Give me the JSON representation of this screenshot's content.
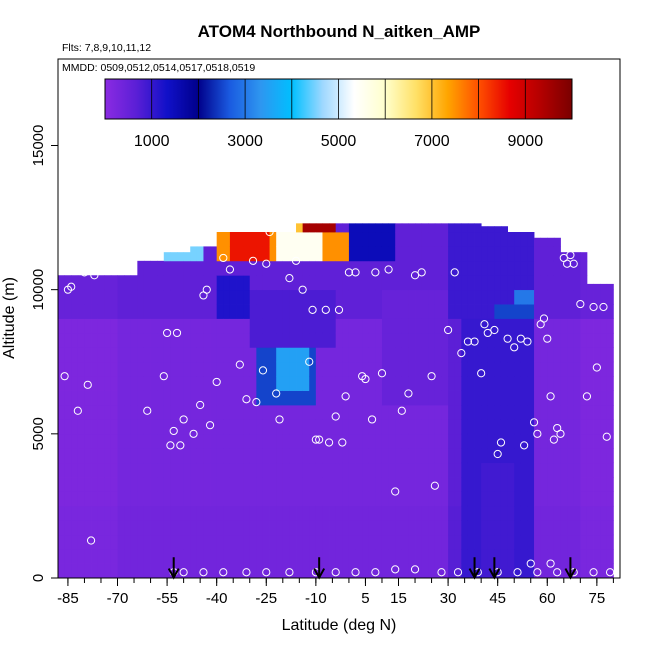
{
  "chart_data": {
    "type": "heatmap",
    "title": "ATOM4 Northbound N_aitken_AMP",
    "subtitle_flights": "Flts: 7,8,9,10,11,12",
    "subtitle_dates": "MMDD: 0509,0512,0514,0517,0518,0519",
    "xlabel": "Latitude (deg N)",
    "ylabel": "Altitude (m)",
    "xlim": [
      -88,
      82
    ],
    "ylim": [
      0,
      18000
    ],
    "x_ticks": [
      -85,
      -70,
      -55,
      -40,
      -25,
      -10,
      5,
      15,
      30,
      45,
      60,
      75
    ],
    "y_ticks": [
      0,
      5000,
      10000,
      15000
    ],
    "colorbar": {
      "range": [
        0,
        10000
      ],
      "ticks": [
        1000,
        3000,
        5000,
        7000,
        9000
      ],
      "stops": [
        "#8B2BE2",
        "#5B1FD6",
        "#1010C8",
        "#00008B",
        "#1a5ae0",
        "#2e96f0",
        "#00bfff",
        "#9fd8ff",
        "#ffffff",
        "#ffffcc",
        "#ffe066",
        "#ffa500",
        "#ff5000",
        "#e60000",
        "#b30000",
        "#7a0000"
      ]
    },
    "flight_tracks": [
      -53,
      -9,
      38,
      44,
      67
    ],
    "field": {
      "x_bins": [
        -88,
        -80,
        -72,
        -64,
        -56,
        -48,
        -40,
        -32,
        -24,
        -16,
        -8,
        0,
        8,
        16,
        24,
        32,
        40,
        48,
        56,
        64,
        72,
        80
      ],
      "top_altitude": [
        10500,
        10500,
        10500,
        11000,
        11300,
        11500,
        12000,
        12000,
        12000,
        12300,
        12300,
        12300,
        12300,
        12300,
        12300,
        12300,
        12200,
        12000,
        11800,
        11300,
        10200,
        9500
      ],
      "cells": [
        {
          "lat": [
            -40,
            0
          ],
          "alt": [
            11000,
            12000
          ],
          "value": 7500
        },
        {
          "lat": [
            -55,
            -45
          ],
          "alt": [
            11000,
            12000
          ],
          "value": 4500
        },
        {
          "lat": [
            -36,
            -25
          ],
          "alt": [
            10800,
            11800
          ],
          "value": 8500
        },
        {
          "lat": [
            -25,
            -5
          ],
          "alt": [
            12000,
            12400
          ],
          "value": 7000
        },
        {
          "lat": [
            -13,
            -5
          ],
          "alt": [
            12000,
            12400
          ],
          "value": 9500
        },
        {
          "lat": [
            -22,
            -8
          ],
          "alt": [
            11200,
            12000
          ],
          "value": 5500
        },
        {
          "lat": [
            0,
            14
          ],
          "alt": [
            11000,
            12200
          ],
          "value": 1500
        },
        {
          "lat": [
            -28,
            -10
          ],
          "alt": [
            6000,
            8500
          ],
          "value": 2500
        },
        {
          "lat": [
            -22,
            -12
          ],
          "alt": [
            6500,
            8000
          ],
          "value": 3500
        },
        {
          "lat": [
            -16,
            -6
          ],
          "alt": [
            8000,
            10000
          ],
          "value": 2200
        },
        {
          "lat": [
            45,
            55
          ],
          "alt": [
            8000,
            9500
          ],
          "value": 2500
        },
        {
          "lat": [
            50,
            56
          ],
          "alt": [
            9500,
            10200
          ],
          "value": 3000
        },
        {
          "lat": [
            -40,
            -30
          ],
          "alt": [
            9000,
            10500
          ],
          "value": 1200
        },
        {
          "lat": [
            35,
            55
          ],
          "alt": [
            0,
            9000
          ],
          "value": 1000
        },
        {
          "lat": [
            40,
            50
          ],
          "alt": [
            0,
            4000
          ],
          "value": 900
        },
        {
          "lat": [
            -30,
            -5
          ],
          "alt": [
            8000,
            10200
          ],
          "value": 800
        },
        {
          "lat": [
            10,
            30
          ],
          "alt": [
            6000,
            10000
          ],
          "value": 500
        }
      ]
    },
    "points": [
      [
        -86,
        7000
      ],
      [
        -85,
        10000
      ],
      [
        -84,
        10100
      ],
      [
        -82,
        5800
      ],
      [
        -80,
        10600
      ],
      [
        -79,
        6700
      ],
      [
        -78,
        1300
      ],
      [
        -77,
        10500
      ],
      [
        -75,
        10700
      ],
      [
        -70,
        11200
      ],
      [
        -68,
        11300
      ],
      [
        -66,
        11400
      ],
      [
        -61,
        5800
      ],
      [
        -56,
        7000
      ],
      [
        -55,
        8500
      ],
      [
        -54,
        4600
      ],
      [
        -53,
        5100
      ],
      [
        -52,
        8500
      ],
      [
        -51,
        4600
      ],
      [
        -50,
        5500
      ],
      [
        -47,
        5000
      ],
      [
        -45,
        6000
      ],
      [
        -44,
        9800
      ],
      [
        -43,
        10000
      ],
      [
        -42,
        5300
      ],
      [
        -40,
        6800
      ],
      [
        -38,
        11100
      ],
      [
        -36,
        10700
      ],
      [
        -33,
        7400
      ],
      [
        -31,
        6200
      ],
      [
        -29,
        11000
      ],
      [
        -28,
        6100
      ],
      [
        -26,
        7200
      ],
      [
        -25,
        10900
      ],
      [
        -24,
        12000
      ],
      [
        -22,
        6400
      ],
      [
        -21,
        5500
      ],
      [
        -18,
        10400
      ],
      [
        -16,
        11000
      ],
      [
        -14,
        10000
      ],
      [
        -12,
        7500
      ],
      [
        -11,
        9300
      ],
      [
        -10,
        4800
      ],
      [
        -9,
        4800
      ],
      [
        -7,
        9300
      ],
      [
        -6,
        4700
      ],
      [
        -4,
        5600
      ],
      [
        -3,
        9300
      ],
      [
        -2,
        4700
      ],
      [
        -1,
        6300
      ],
      [
        0,
        10600
      ],
      [
        2,
        10600
      ],
      [
        4,
        7000
      ],
      [
        5,
        6900
      ],
      [
        7,
        5500
      ],
      [
        8,
        10600
      ],
      [
        10,
        7100
      ],
      [
        12,
        10700
      ],
      [
        14,
        3000
      ],
      [
        16,
        5800
      ],
      [
        18,
        6400
      ],
      [
        20,
        10500
      ],
      [
        22,
        10600
      ],
      [
        25,
        7000
      ],
      [
        26,
        3200
      ],
      [
        30,
        8600
      ],
      [
        32,
        10600
      ],
      [
        34,
        7800
      ],
      [
        36,
        8200
      ],
      [
        38,
        8200
      ],
      [
        40,
        7100
      ],
      [
        41,
        8800
      ],
      [
        42,
        8500
      ],
      [
        44,
        8600
      ],
      [
        45,
        4300
      ],
      [
        46,
        4700
      ],
      [
        48,
        8300
      ],
      [
        50,
        8000
      ],
      [
        52,
        8300
      ],
      [
        53,
        4600
      ],
      [
        54,
        8200
      ],
      [
        56,
        5400
      ],
      [
        57,
        5000
      ],
      [
        58,
        8800
      ],
      [
        59,
        9000
      ],
      [
        60,
        8300
      ],
      [
        61,
        6300
      ],
      [
        62,
        4800
      ],
      [
        63,
        5200
      ],
      [
        64,
        5000
      ],
      [
        65,
        11100
      ],
      [
        66,
        10900
      ],
      [
        67,
        11200
      ],
      [
        68,
        10900
      ],
      [
        70,
        9500
      ],
      [
        72,
        6300
      ],
      [
        74,
        9400
      ],
      [
        75,
        7300
      ],
      [
        77,
        9400
      ],
      [
        78,
        4900
      ],
      [
        -53,
        200
      ],
      [
        -50,
        200
      ],
      [
        -44,
        200
      ],
      [
        -38,
        200
      ],
      [
        -31,
        200
      ],
      [
        -25,
        200
      ],
      [
        -18,
        200
      ],
      [
        -10,
        200
      ],
      [
        -4,
        200
      ],
      [
        2,
        200
      ],
      [
        8,
        200
      ],
      [
        14,
        300
      ],
      [
        20,
        300
      ],
      [
        28,
        200
      ],
      [
        33,
        200
      ],
      [
        39,
        200
      ],
      [
        45,
        200
      ],
      [
        51,
        200
      ],
      [
        57,
        200
      ],
      [
        63,
        200
      ],
      [
        68,
        200
      ],
      [
        74,
        200
      ],
      [
        79,
        200
      ],
      [
        61,
        500
      ],
      [
        55,
        500
      ]
    ]
  }
}
